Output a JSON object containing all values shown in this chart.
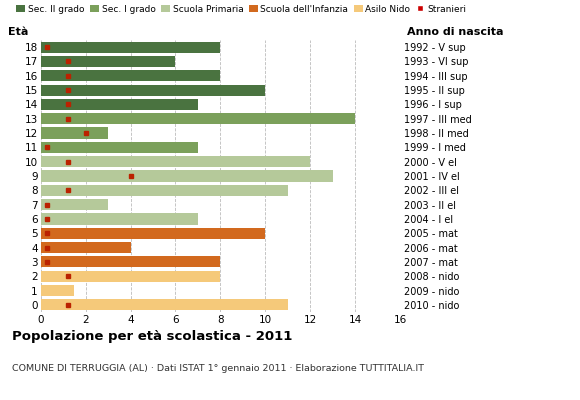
{
  "ages": [
    18,
    17,
    16,
    15,
    14,
    13,
    12,
    11,
    10,
    9,
    8,
    7,
    6,
    5,
    4,
    3,
    2,
    1,
    0
  ],
  "anno": [
    "1992 - V sup",
    "1993 - VI sup",
    "1994 - III sup",
    "1995 - II sup",
    "1996 - I sup",
    "1997 - III med",
    "1998 - II med",
    "1999 - I med",
    "2000 - V el",
    "2001 - IV el",
    "2002 - III el",
    "2003 - II el",
    "2004 - I el",
    "2005 - mat",
    "2006 - mat",
    "2007 - mat",
    "2008 - nido",
    "2009 - nido",
    "2010 - nido"
  ],
  "bar_values": [
    8,
    6,
    8,
    10,
    7,
    14,
    3,
    7,
    12,
    13,
    11,
    3,
    7,
    10,
    4,
    8,
    8,
    1.5,
    11
  ],
  "bar_colors": [
    "#4a7340",
    "#4a7340",
    "#4a7340",
    "#4a7340",
    "#4a7340",
    "#7ba05b",
    "#7ba05b",
    "#7ba05b",
    "#b5c99a",
    "#b5c99a",
    "#b5c99a",
    "#b5c99a",
    "#b5c99a",
    "#d2691e",
    "#d2691e",
    "#d2691e",
    "#f5c97a",
    "#f5c97a",
    "#f5c97a"
  ],
  "stranieri_x": [
    0.3,
    1.2,
    1.2,
    1.2,
    1.2,
    1.2,
    2.0,
    0.3,
    1.2,
    4.0,
    1.2,
    0.3,
    0.3,
    0.3,
    0.3,
    0.3,
    1.2,
    null,
    1.2
  ],
  "legend_labels": [
    "Sec. II grado",
    "Sec. I grado",
    "Scuola Primaria",
    "Scuola dell'Infanzia",
    "Asilo Nido",
    "Stranieri"
  ],
  "legend_colors": [
    "#4a7340",
    "#7ba05b",
    "#b5c99a",
    "#d2691e",
    "#f5c97a",
    "#cc0000"
  ],
  "title": "Popolazione per età scolastica - 2011",
  "subtitle": "COMUNE DI TERRUGGIA (AL) · Dati ISTAT 1° gennaio 2011 · Elaborazione TUTTITALIA.IT",
  "xlabel_left": "Età",
  "xlabel_right": "Anno di nascita",
  "xlim": [
    0,
    16
  ],
  "xticks": [
    0,
    2,
    4,
    6,
    8,
    10,
    12,
    14,
    16
  ],
  "background_color": "#ffffff",
  "grid_color": "#bbbbbb"
}
